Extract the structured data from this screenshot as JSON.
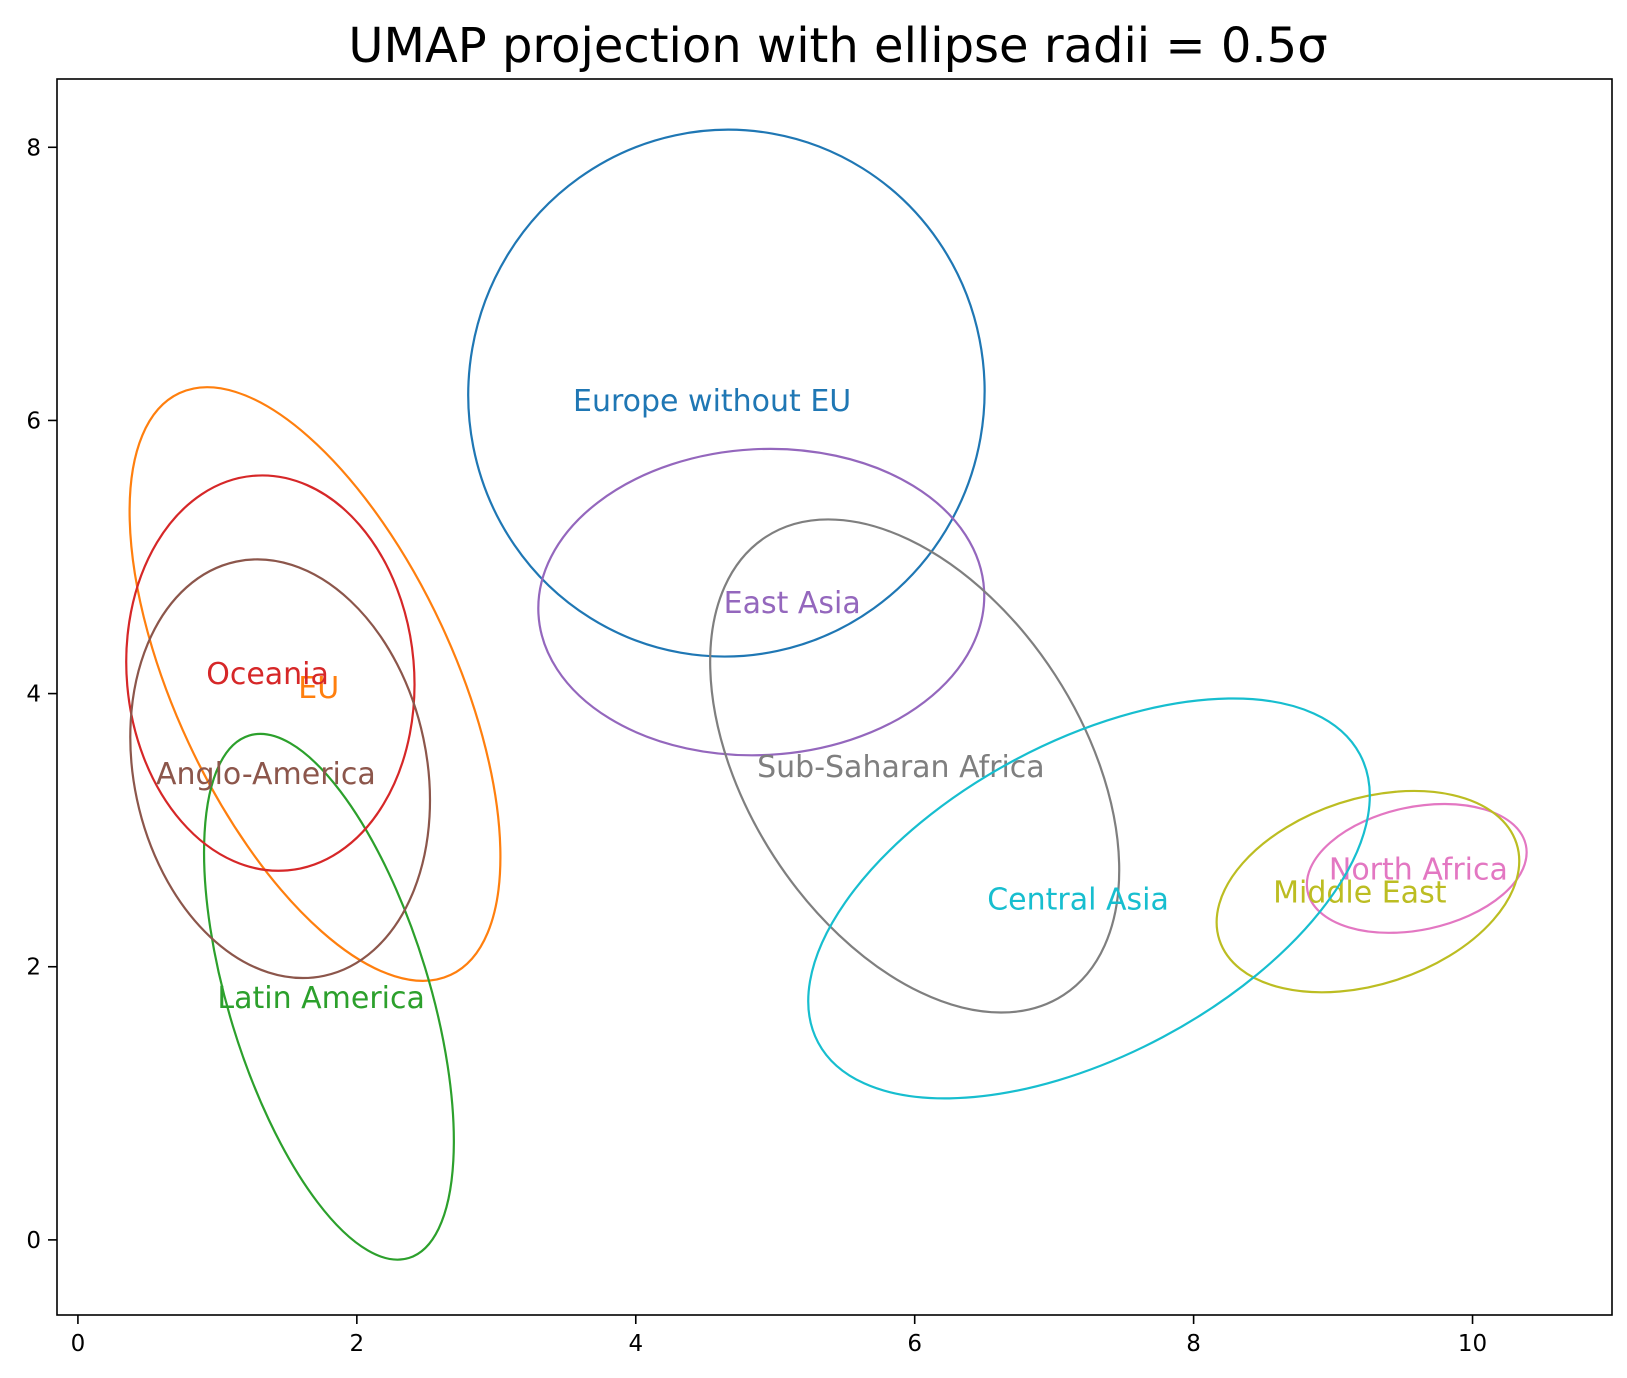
{
  "chart_data": {
    "type": "scatter",
    "title": "UMAP projection with ellipse radii = 0.5σ",
    "xlabel": "",
    "ylabel": "",
    "xlim": [
      -0.15,
      11.0
    ],
    "ylim": [
      -0.55,
      8.5
    ],
    "x_ticks": [
      0,
      2,
      4,
      6,
      8,
      10
    ],
    "y_ticks": [
      0,
      2,
      4,
      6,
      8
    ],
    "grid": false,
    "legend": "none",
    "series": [
      {
        "name": "Europe without EU",
        "color": "#1f77b4",
        "center": [
          4.65,
          6.2
        ],
        "rx": 1.85,
        "ry": 1.93,
        "angle": 10,
        "label_at": [
          3.55,
          6.15
        ]
      },
      {
        "name": "EU",
        "color": "#ff7f0e",
        "center": [
          1.7,
          4.07
        ],
        "rx": 1.0,
        "ry": 2.35,
        "angle": -25,
        "label_at": [
          1.58,
          4.05
        ]
      },
      {
        "name": "Latin America",
        "color": "#2ca02c",
        "center": [
          1.8,
          1.78
        ],
        "rx": 0.72,
        "ry": 2.0,
        "angle": -17,
        "label_at": [
          1.0,
          1.78
        ]
      },
      {
        "name": "Oceania",
        "color": "#d62728",
        "center": [
          1.38,
          4.15
        ],
        "rx": 1.03,
        "ry": 1.45,
        "angle": -5,
        "label_at": [
          0.92,
          4.15
        ]
      },
      {
        "name": "East Asia",
        "color": "#9467bd",
        "center": [
          4.9,
          4.67
        ],
        "rx": 1.6,
        "ry": 1.12,
        "angle": -3,
        "label_at": [
          4.63,
          4.67
        ]
      },
      {
        "name": "Anglo-America",
        "color": "#8c564b",
        "center": [
          1.45,
          3.45
        ],
        "rx": 1.05,
        "ry": 1.55,
        "angle": -12,
        "label_at": [
          0.56,
          3.42
        ]
      },
      {
        "name": "North Africa",
        "color": "#e377c2",
        "center": [
          9.6,
          2.72
        ],
        "rx": 0.8,
        "ry": 0.45,
        "angle": -12,
        "label_at": [
          8.97,
          2.72
        ]
      },
      {
        "name": "Sub-Saharan Africa",
        "color": "#7f7f7f",
        "center": [
          6.0,
          3.47
        ],
        "rx": 1.2,
        "ry": 2.0,
        "angle": -33,
        "label_at": [
          4.87,
          3.47
        ]
      },
      {
        "name": "Middle East",
        "color": "#bcbd22",
        "center": [
          9.25,
          2.55
        ],
        "rx": 1.12,
        "ry": 0.68,
        "angle": -18,
        "label_at": [
          8.57,
          2.55
        ]
      },
      {
        "name": "Central Asia",
        "color": "#17becf",
        "center": [
          7.25,
          2.5
        ],
        "rx": 2.2,
        "ry": 1.15,
        "angle": -28,
        "label_at": [
          6.52,
          2.5
        ]
      }
    ]
  }
}
